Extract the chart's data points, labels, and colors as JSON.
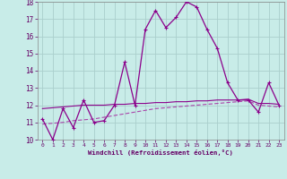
{
  "xlabel": "Windchill (Refroidissement éolien,°C)",
  "x": [
    0,
    1,
    2,
    3,
    4,
    5,
    6,
    7,
    8,
    9,
    10,
    11,
    12,
    13,
    14,
    15,
    16,
    17,
    18,
    19,
    20,
    21,
    22,
    23
  ],
  "line1_y": [
    11.2,
    10.0,
    11.8,
    10.7,
    12.3,
    11.0,
    11.1,
    12.0,
    14.5,
    12.0,
    16.4,
    17.5,
    16.5,
    17.1,
    18.0,
    17.7,
    16.4,
    15.3,
    13.3,
    12.3,
    12.3,
    11.6,
    13.3,
    12.0
  ],
  "line2_y": [
    11.8,
    11.85,
    11.9,
    11.95,
    12.0,
    12.0,
    12.0,
    12.05,
    12.05,
    12.1,
    12.1,
    12.15,
    12.15,
    12.2,
    12.2,
    12.25,
    12.25,
    12.3,
    12.3,
    12.3,
    12.35,
    12.1,
    12.1,
    12.05
  ],
  "line3_y": [
    10.9,
    10.95,
    11.0,
    11.1,
    11.15,
    11.2,
    11.3,
    11.4,
    11.5,
    11.6,
    11.7,
    11.8,
    11.85,
    11.9,
    11.95,
    12.0,
    12.05,
    12.1,
    12.15,
    12.2,
    12.25,
    12.0,
    11.95,
    11.9
  ],
  "line1_color": "#8B008B",
  "line2_color": "#8B008B",
  "line3_color": "#AA44AA",
  "bg_color": "#C8ECE8",
  "grid_color": "#AACFCC",
  "ylim": [
    10,
    18
  ],
  "yticks": [
    10,
    11,
    12,
    13,
    14,
    15,
    16,
    17,
    18
  ],
  "xticks": [
    0,
    1,
    2,
    3,
    4,
    5,
    6,
    7,
    8,
    9,
    10,
    11,
    12,
    13,
    14,
    15,
    16,
    17,
    18,
    19,
    20,
    21,
    22,
    23
  ]
}
